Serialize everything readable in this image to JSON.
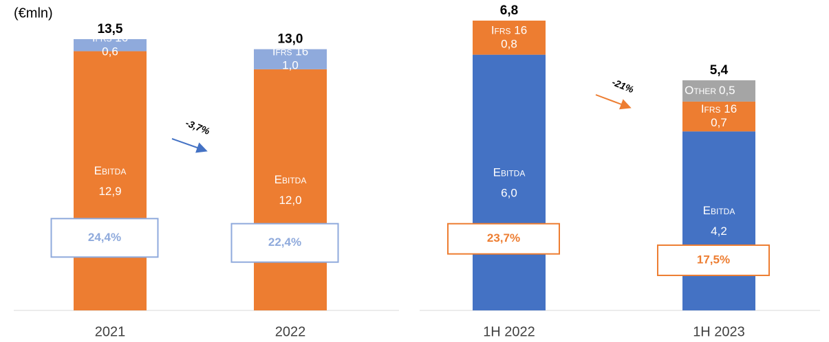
{
  "chart_data": [
    {
      "type": "stacked_bar",
      "unit": "(€mln)",
      "categories": [
        "2021",
        "2022"
      ],
      "series": [
        {
          "name": "Ebitda",
          "color": "#ED7D31",
          "values": [
            12.9,
            12.0
          ],
          "value_labels": [
            "12,9",
            "12,0"
          ]
        },
        {
          "name": "Ifrs 16",
          "color": "#8FAADC",
          "values": [
            0.6,
            1.0
          ],
          "value_labels": [
            "0,6",
            "1,0"
          ]
        }
      ],
      "totals": {
        "values": [
          13.5,
          13.0
        ],
        "value_labels": [
          "13,5",
          "13,0"
        ]
      },
      "margins": {
        "values": [
          24.4,
          22.4
        ],
        "value_labels": [
          "24,4%",
          "22,4%"
        ],
        "color": "#8FAADC"
      },
      "change_label": "-3,7%",
      "arrow_color": "#4472C4"
    },
    {
      "type": "stacked_bar",
      "categories": [
        "1H 2022",
        "1H 2023"
      ],
      "series": [
        {
          "name": "Ebitda",
          "color": "#4472C4",
          "values": [
            6.0,
            4.2
          ],
          "value_labels": [
            "6,0",
            "4,2"
          ]
        },
        {
          "name": "Ifrs 16",
          "color": "#ED7D31",
          "values": [
            0.8,
            0.7
          ],
          "value_labels": [
            "0,8",
            "0,7"
          ]
        },
        {
          "name": "Other",
          "color": "#A5A5A5",
          "values": [
            null,
            0.5
          ],
          "value_labels": [
            null,
            "0,5"
          ]
        }
      ],
      "totals": {
        "values": [
          6.8,
          5.4
        ],
        "value_labels": [
          "6,8",
          "5,4"
        ]
      },
      "margins": {
        "values": [
          23.7,
          17.5
        ],
        "value_labels": [
          "23,7%",
          "17,5%"
        ],
        "color": "#ED7D31"
      },
      "change_label": "-21%",
      "arrow_color": "#ED7D31"
    }
  ]
}
